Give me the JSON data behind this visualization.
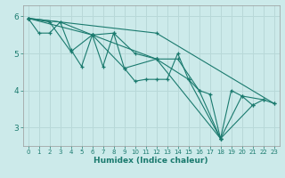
{
  "xlabel": "Humidex (Indice chaleur)",
  "bg_color": "#cceaea",
  "grid_color": "#b8d8d8",
  "line_color": "#1a7a6e",
  "xlim": [
    -0.5,
    23.5
  ],
  "ylim": [
    2.5,
    6.3
  ],
  "yticks": [
    3,
    4,
    5,
    6
  ],
  "xticks": [
    0,
    1,
    2,
    3,
    4,
    5,
    6,
    7,
    8,
    9,
    10,
    11,
    12,
    13,
    14,
    15,
    16,
    17,
    18,
    19,
    20,
    21,
    22,
    23
  ],
  "lines": [
    {
      "x": [
        0,
        1,
        2,
        3,
        4,
        5,
        6,
        7,
        8,
        9,
        10,
        11,
        12,
        13,
        14,
        15,
        16,
        17,
        18,
        19,
        20,
        21,
        22,
        23
      ],
      "y": [
        5.95,
        5.55,
        5.55,
        5.85,
        5.1,
        4.65,
        5.5,
        4.65,
        5.55,
        4.6,
        4.25,
        4.3,
        4.3,
        4.3,
        5.0,
        4.3,
        4.0,
        3.9,
        2.7,
        4.0,
        3.85,
        3.6,
        3.75,
        3.65
      ]
    },
    {
      "x": [
        0,
        2,
        4,
        6,
        8,
        10,
        12,
        14,
        16,
        18,
        20,
        22
      ],
      "y": [
        5.95,
        5.85,
        5.05,
        5.5,
        5.55,
        5.0,
        4.85,
        4.85,
        4.0,
        2.7,
        3.85,
        3.75
      ]
    },
    {
      "x": [
        0,
        3,
        6,
        9,
        12,
        15,
        18,
        21
      ],
      "y": [
        5.95,
        5.85,
        5.5,
        4.6,
        4.85,
        4.3,
        2.7,
        3.6
      ]
    },
    {
      "x": [
        0,
        6,
        12,
        18
      ],
      "y": [
        5.95,
        5.5,
        4.85,
        2.7
      ]
    },
    {
      "x": [
        0,
        12,
        23
      ],
      "y": [
        5.95,
        5.55,
        3.65
      ]
    }
  ]
}
